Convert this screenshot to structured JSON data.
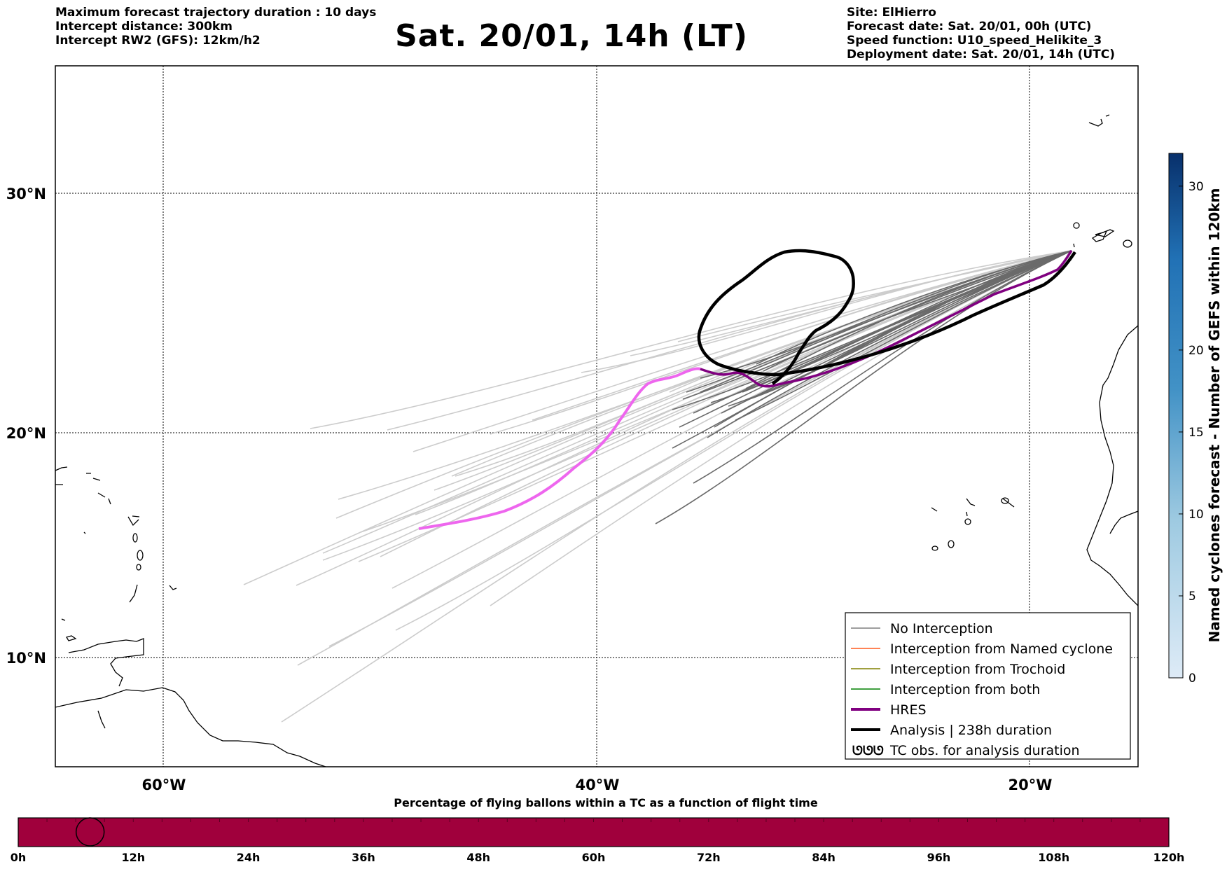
{
  "header": {
    "left_lines": [
      "Maximum forecast trajectory duration : 10 days",
      "Intercept distance: 300km",
      "Intercept RW2 (GFS):  12km/h2"
    ],
    "title": "Sat. 20/01, 14h (LT)",
    "right_lines": [
      "Site: ElHierro",
      "Forecast date: Sat. 20/01, 00h (UTC)",
      "Speed function: U10_speed_Helikite_3",
      "Deployment date: Sat. 20/01, 14h (UTC)"
    ]
  },
  "map": {
    "lat_labels": [
      "30°N",
      "20°N",
      "10°N"
    ],
    "lon_labels": [
      "60°W",
      "40°W",
      "20°W"
    ],
    "colors": {
      "no_interception": "#7f7f7f",
      "named_cyclone": "#ff5a1f",
      "trochoid": "#808000",
      "both": "#008000",
      "hres": "#800080",
      "hres_early": "#ee66ee",
      "analysis": "#000000",
      "light_traj": "#cccccc",
      "dark_traj": "#6a6a6a"
    }
  },
  "legend": {
    "items": [
      {
        "label": "No Interception",
        "style": "thin",
        "color": "#7f7f7f"
      },
      {
        "label": "Interception from Named cyclone",
        "style": "thin",
        "color": "#ff5a1f"
      },
      {
        "label": "Interception from Trochoid",
        "style": "thin",
        "color": "#808000"
      },
      {
        "label": "Interception from both",
        "style": "thin",
        "color": "#008000"
      },
      {
        "label": "HRES",
        "style": "thick",
        "color": "#800080"
      },
      {
        "label": "Analysis | 238h duration",
        "style": "thick",
        "color": "#000000"
      },
      {
        "label": "TC obs. for analysis duration",
        "style": "symbol",
        "symbol": "ᘎᘎᘎ"
      }
    ]
  },
  "colorbar": {
    "label": "Named cyclones forecast - Number of GEFS within 120km",
    "ticks": [
      "0",
      "5",
      "10",
      "15",
      "20",
      "30"
    ],
    "min": 0,
    "max": 32,
    "top_color": "#08306b",
    "bottom_color": "#deebf7"
  },
  "timebar": {
    "title": "Percentage of flying ballons within a TC as a function of flight time",
    "ticks": [
      "0h",
      "12h",
      "24h",
      "36h",
      "48h",
      "60h",
      "72h",
      "84h",
      "96h",
      "108h",
      "120h"
    ],
    "fill_color": "#a0003c",
    "marker_hour": 7.5
  }
}
